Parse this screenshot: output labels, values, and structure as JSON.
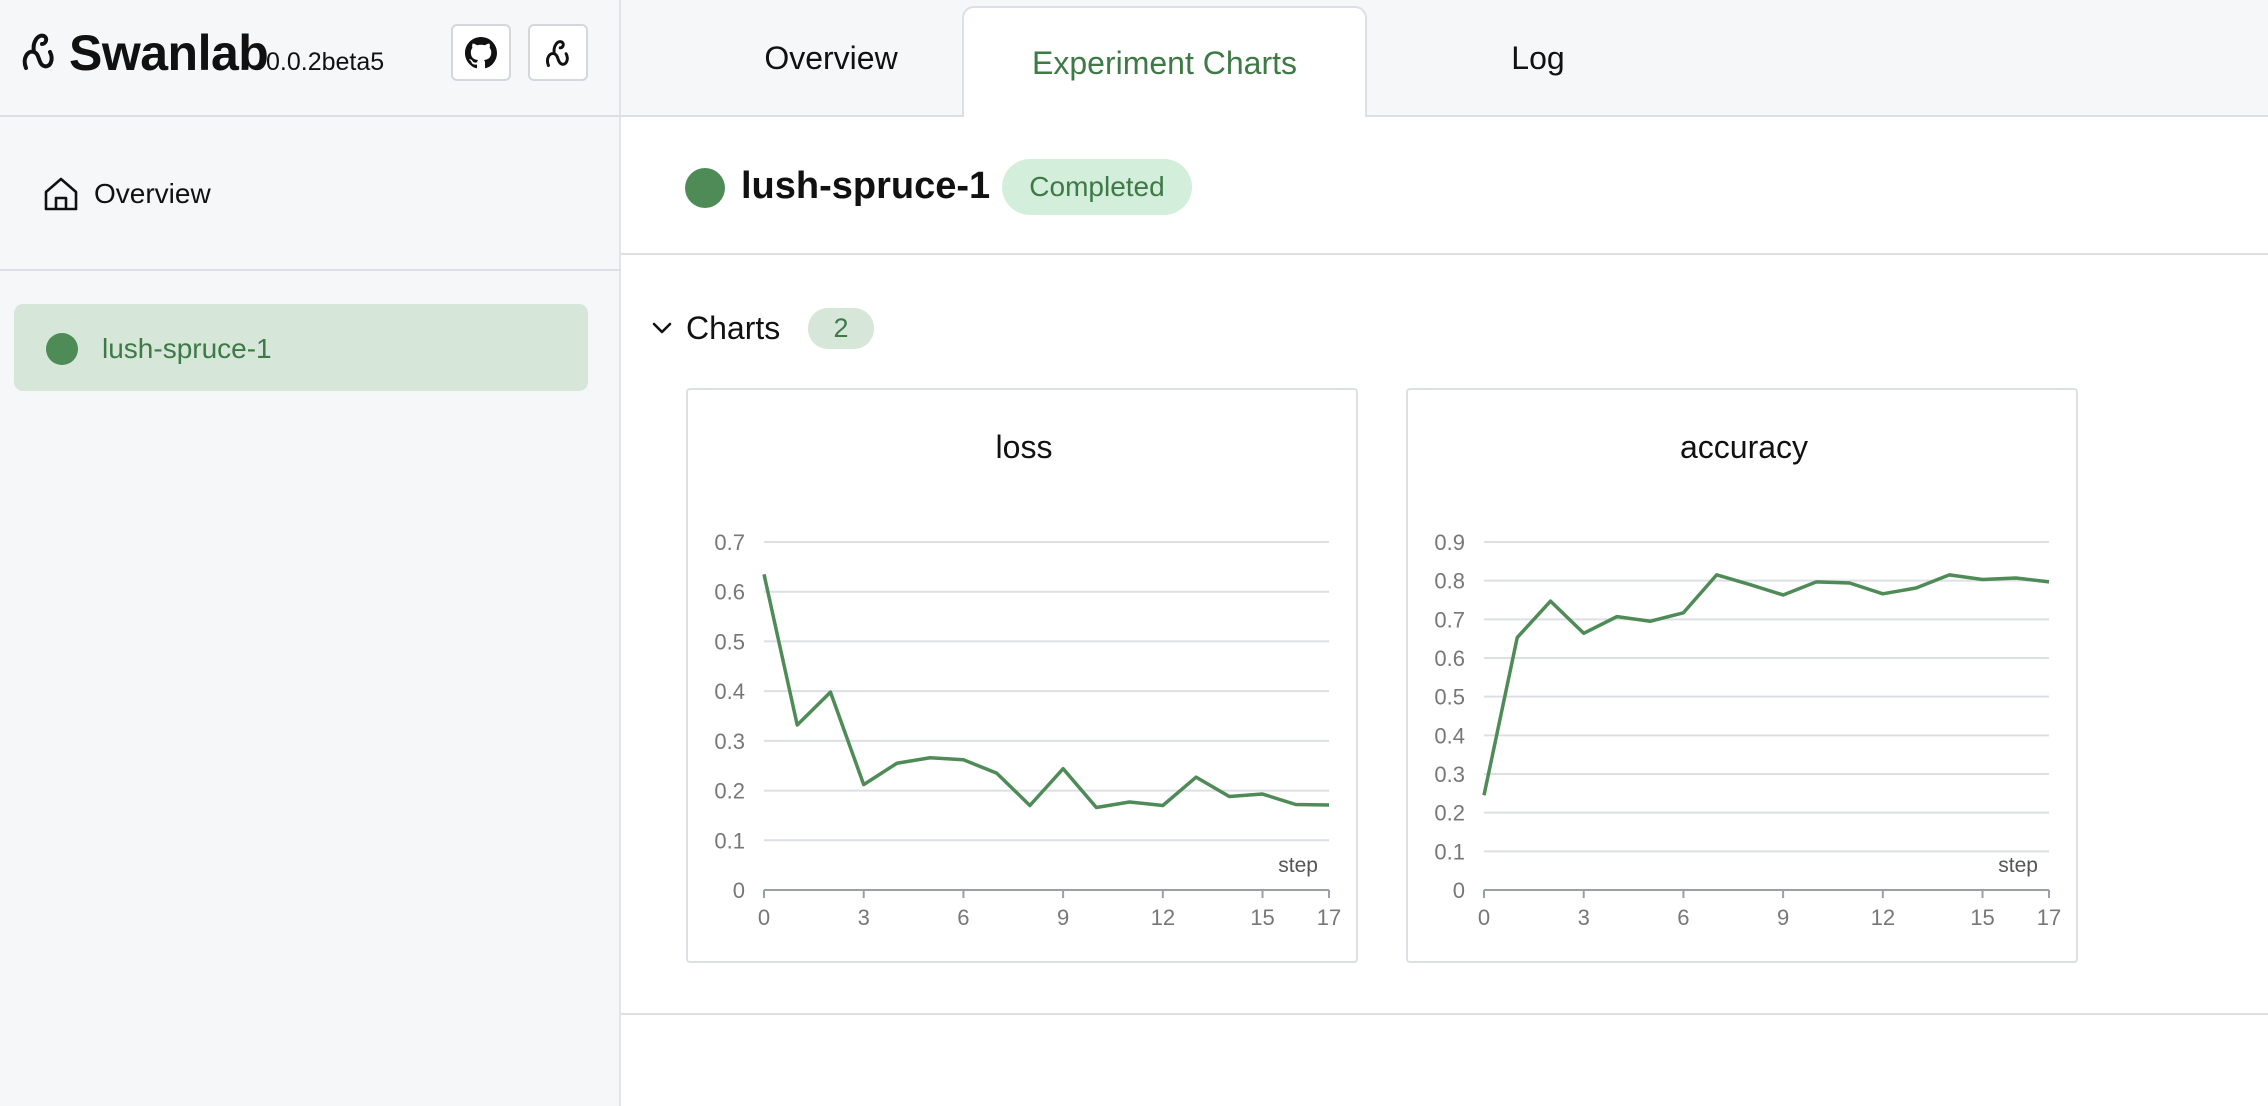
{
  "app": {
    "name": "Swanlab",
    "version": "0.0.2beta5"
  },
  "icons": {
    "logo": "swanlab-logo-icon",
    "github": "github-icon",
    "swanlab": "swanlab-icon",
    "home": "home-icon",
    "toggle": "chevron-down-icon"
  },
  "sidebar": {
    "overview_label": "Overview",
    "experiments": [
      {
        "label": "lush-spruce-1",
        "color": "#4f8b57"
      }
    ]
  },
  "tabs": [
    {
      "label": "Overview",
      "active": false
    },
    {
      "label": "Experiment Charts",
      "active": true
    },
    {
      "label": "Log",
      "active": false
    }
  ],
  "experiment": {
    "name": "lush-spruce-1",
    "status": "Completed",
    "color": "#4f8b57"
  },
  "section": {
    "title": "Charts",
    "count": "2"
  },
  "colors": {
    "accent": "#3d7a46",
    "line": "#4f8b57",
    "badge_bg": "#d3eedb",
    "active_bg": "#d6e6d9"
  },
  "chart_data": [
    {
      "type": "line",
      "title": "loss",
      "xlabel": "step",
      "ylabel": "",
      "xlim": [
        0,
        17
      ],
      "ylim": [
        0,
        0.7
      ],
      "xticks": [
        0,
        3,
        6,
        9,
        12,
        15,
        17
      ],
      "yticks": [
        0,
        0.1,
        0.2,
        0.3,
        0.4,
        0.5,
        0.6,
        0.7
      ],
      "x": [
        0,
        1,
        2,
        3,
        4,
        5,
        6,
        7,
        8,
        9,
        10,
        11,
        12,
        13,
        14,
        15,
        16,
        17
      ],
      "series": [
        {
          "values": [
            0.635,
            0.332,
            0.398,
            0.212,
            0.255,
            0.266,
            0.262,
            0.235,
            0.17,
            0.244,
            0.166,
            0.177,
            0.17,
            0.227,
            0.188,
            0.193,
            0.172,
            0.171
          ]
        }
      ],
      "grid": true
    },
    {
      "type": "line",
      "title": "accuracy",
      "xlabel": "step",
      "ylabel": "",
      "xlim": [
        0,
        17
      ],
      "ylim": [
        0,
        0.9
      ],
      "xticks": [
        0,
        3,
        6,
        9,
        12,
        15,
        17
      ],
      "yticks": [
        0,
        0.1,
        0.2,
        0.3,
        0.4,
        0.5,
        0.6,
        0.7,
        0.8,
        0.9
      ],
      "x": [
        0,
        1,
        2,
        3,
        4,
        5,
        6,
        7,
        8,
        9,
        10,
        11,
        12,
        13,
        14,
        15,
        16,
        17
      ],
      "series": [
        {
          "values": [
            0.245,
            0.653,
            0.747,
            0.664,
            0.707,
            0.695,
            0.717,
            0.815,
            0.79,
            0.763,
            0.797,
            0.794,
            0.766,
            0.781,
            0.815,
            0.803,
            0.807,
            0.797
          ]
        }
      ],
      "grid": true
    }
  ]
}
